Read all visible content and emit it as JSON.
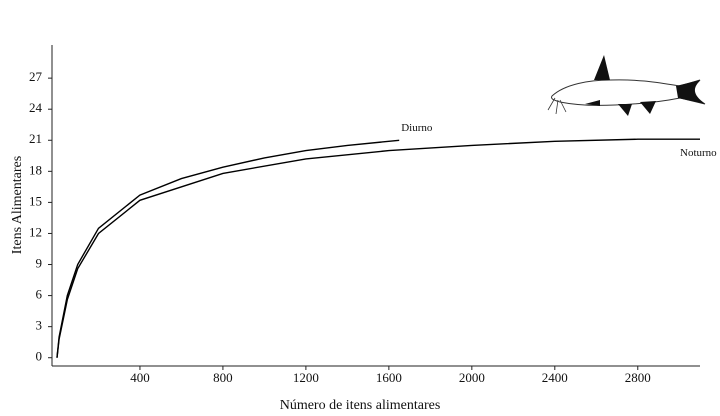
{
  "chart_data": {
    "type": "line",
    "x_label": "Número de itens alimentares",
    "y_label": "Itens Alimentares",
    "series": [
      {
        "name": "Diurno",
        "color": "#000000",
        "x": [
          0,
          10,
          50,
          100,
          200,
          400,
          600,
          800,
          1000,
          1200,
          1400,
          1650
        ],
        "values": [
          0,
          2,
          6,
          9,
          12.5,
          15.7,
          17.3,
          18.4,
          19.3,
          20,
          20.5,
          21
        ]
      },
      {
        "name": "Noturno",
        "color": "#000000",
        "x": [
          0,
          10,
          50,
          100,
          200,
          400,
          800,
          1200,
          1600,
          2000,
          2400,
          2800,
          3100
        ],
        "values": [
          0,
          1.8,
          5.6,
          8.6,
          12,
          15.2,
          17.8,
          19.2,
          20,
          20.5,
          20.9,
          21.1,
          21.1
        ]
      }
    ],
    "xlim": [
      -24,
      3100
    ],
    "xticks": [
      400,
      800,
      1200,
      1600,
      2000,
      2400,
      2800
    ],
    "ylim": [
      -0.8,
      30.2
    ],
    "yticks": [
      0,
      3,
      6,
      9,
      12,
      15,
      18,
      21,
      24,
      27
    ]
  }
}
